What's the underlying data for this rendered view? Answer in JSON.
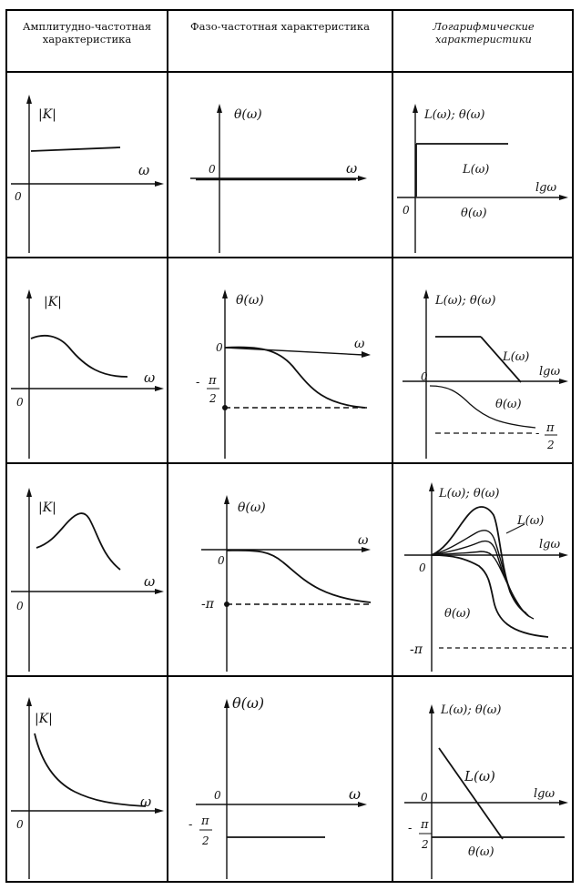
{
  "headers": {
    "amplitude": "Амплитудно-частотная характеристика",
    "phase": "Фазо-частотная характеристика",
    "log": "Логарифмические характеристики"
  },
  "labels": {
    "modK": "|K|",
    "omega": "ω",
    "zero": "0",
    "theta_w": "θ(ω)",
    "L_theta": "L(ω); θ(ω)",
    "L_w": "L(ω)",
    "lgw": "lgω",
    "minus": "-",
    "pi": "π",
    "two": "2",
    "minus_pi": "-π"
  },
  "colors": {
    "ink": "#111111",
    "border": "#000000",
    "background": "#ffffff"
  }
}
